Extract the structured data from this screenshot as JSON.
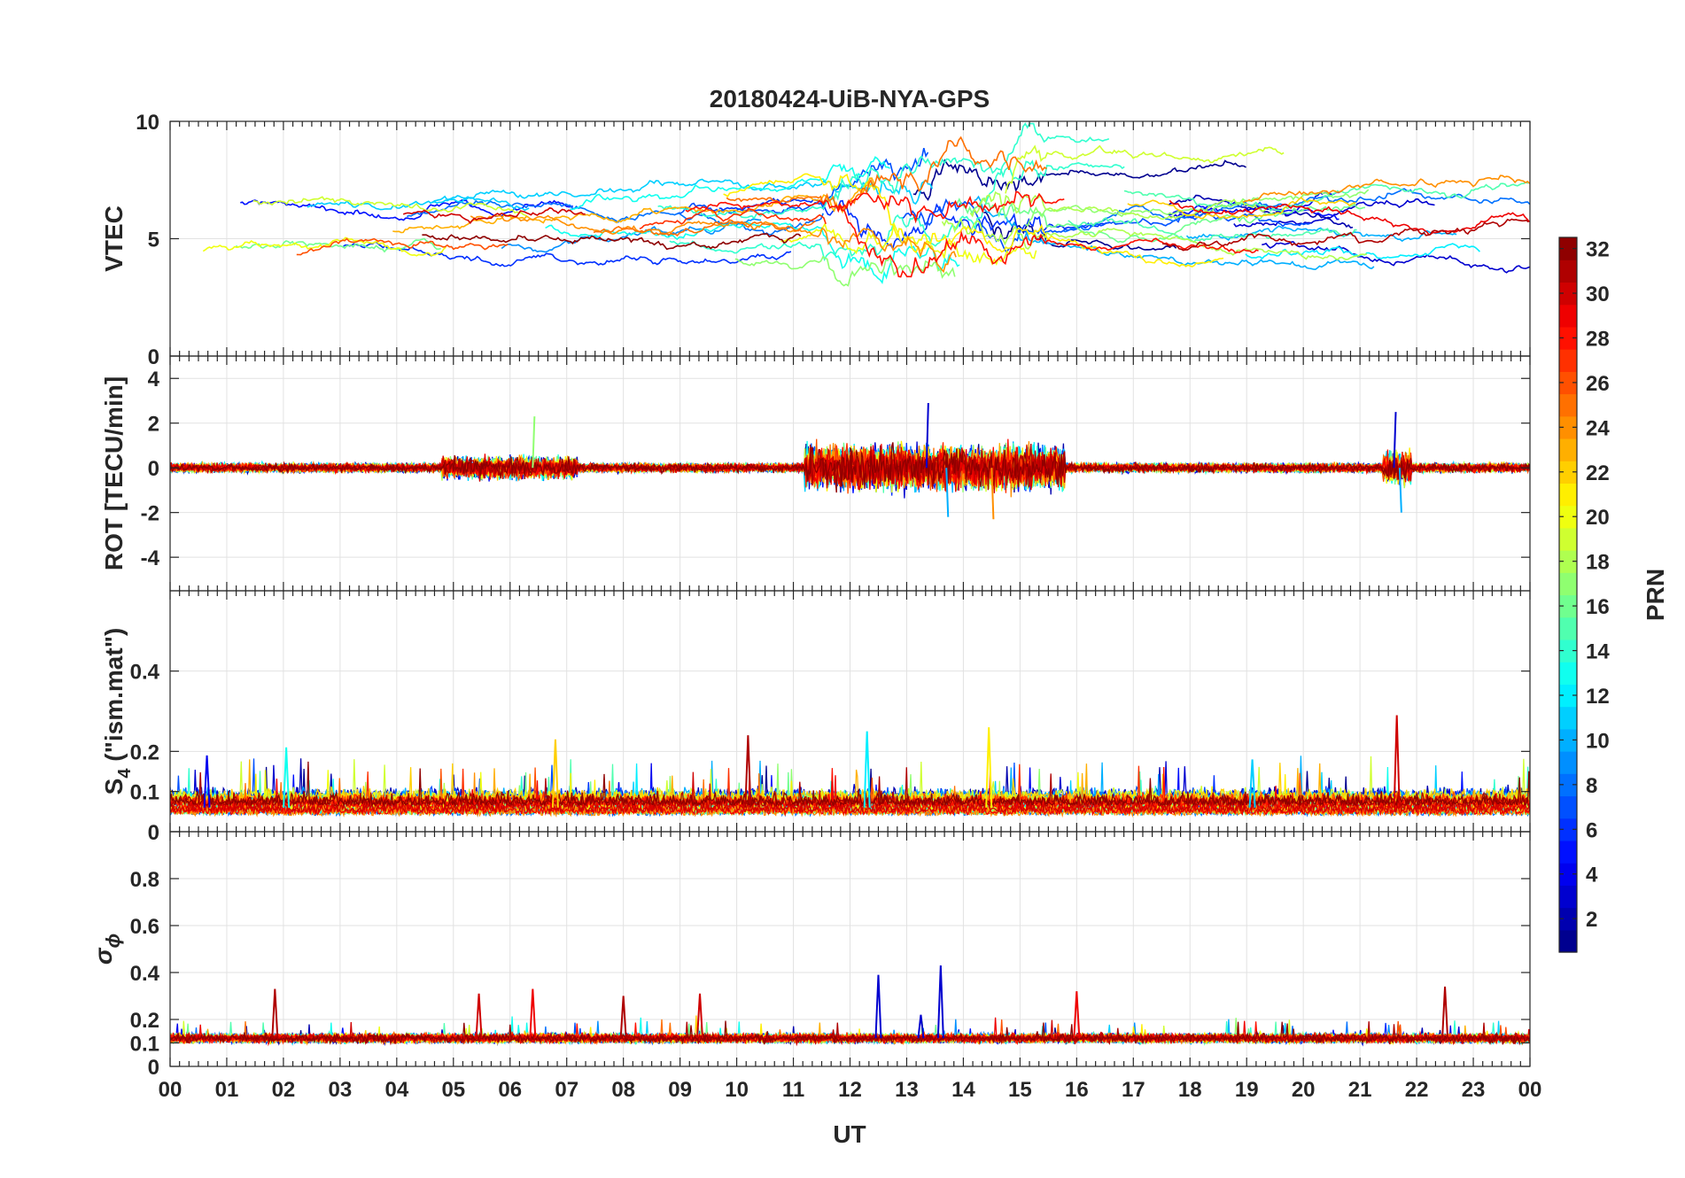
{
  "chart_data": {
    "type": "line",
    "title": "20180424-UiB-NYA-GPS",
    "xlabel": "UT",
    "x_ticks": [
      "00",
      "01",
      "02",
      "03",
      "04",
      "05",
      "06",
      "07",
      "08",
      "09",
      "10",
      "11",
      "12",
      "13",
      "14",
      "15",
      "16",
      "17",
      "18",
      "19",
      "20",
      "21",
      "22",
      "23",
      "00"
    ],
    "xlim": [
      0,
      24
    ],
    "panels": [
      {
        "id": "vtec",
        "ylabel": "VTEC",
        "ylim": [
          0,
          10
        ],
        "yticks": [
          0,
          5,
          10
        ],
        "ytick_labels": [
          "0",
          "5",
          "10"
        ],
        "series_description": "VTEC per satellite (one line per PRN), values mostly 3-10 TECU",
        "typical_range": [
          3,
          10
        ]
      },
      {
        "id": "rot",
        "ylabel": "ROT [TECU/min]",
        "ylim": [
          -5.5,
          5
        ],
        "yticks": [
          -4,
          -2,
          0,
          2,
          4
        ],
        "ytick_labels": [
          "-4",
          "-2",
          "0",
          "2",
          "4"
        ],
        "peaks": [
          {
            "ut": 13.35,
            "value": 2.9
          },
          {
            "ut": 13.7,
            "value": -2.2
          },
          {
            "ut": 6.4,
            "value": 2.3
          },
          {
            "ut": 14.5,
            "value": -2.3
          },
          {
            "ut": 21.6,
            "value": 2.5
          },
          {
            "ut": 21.7,
            "value": -2.0
          }
        ]
      },
      {
        "id": "s4",
        "ylabel_main": "S",
        "ylabel_sub": "4",
        "ylabel_rest": " (\"ism.mat\")",
        "ylim": [
          0,
          0.6
        ],
        "yticks": [
          0,
          0.1,
          0.2,
          0.4
        ],
        "ytick_labels": [
          "0",
          "0.1",
          "0.2",
          "0.4"
        ],
        "baseline": 0.06,
        "peaks": [
          {
            "ut": 0.65,
            "value": 0.19
          },
          {
            "ut": 2.05,
            "value": 0.21
          },
          {
            "ut": 6.8,
            "value": 0.23
          },
          {
            "ut": 10.2,
            "value": 0.24
          },
          {
            "ut": 12.3,
            "value": 0.25
          },
          {
            "ut": 14.45,
            "value": 0.26
          },
          {
            "ut": 21.65,
            "value": 0.29
          },
          {
            "ut": 19.1,
            "value": 0.18
          }
        ]
      },
      {
        "id": "sigma",
        "ylabel_main": "σ",
        "ylabel_sub": "ϕ",
        "ylim": [
          0,
          1
        ],
        "yticks": [
          0,
          0.1,
          0.2,
          0.4,
          0.6,
          0.8
        ],
        "ytick_labels": [
          "0",
          "0.1",
          "0.2",
          "0.4",
          "0.6",
          "0.8"
        ],
        "baseline": 0.12,
        "peaks": [
          {
            "ut": 1.85,
            "value": 0.33
          },
          {
            "ut": 5.45,
            "value": 0.31
          },
          {
            "ut": 6.4,
            "value": 0.33
          },
          {
            "ut": 8.0,
            "value": 0.3
          },
          {
            "ut": 9.35,
            "value": 0.31
          },
          {
            "ut": 12.5,
            "value": 0.39
          },
          {
            "ut": 13.25,
            "value": 0.22
          },
          {
            "ut": 13.6,
            "value": 0.43
          },
          {
            "ut": 16.0,
            "value": 0.32
          },
          {
            "ut": 22.5,
            "value": 0.34
          }
        ]
      }
    ],
    "colorbar": {
      "label": "PRN",
      "range": [
        1,
        32
      ],
      "ticks": [
        2,
        4,
        6,
        8,
        10,
        12,
        14,
        16,
        18,
        20,
        22,
        24,
        26,
        28,
        30,
        32
      ],
      "colormap": "jet"
    }
  }
}
